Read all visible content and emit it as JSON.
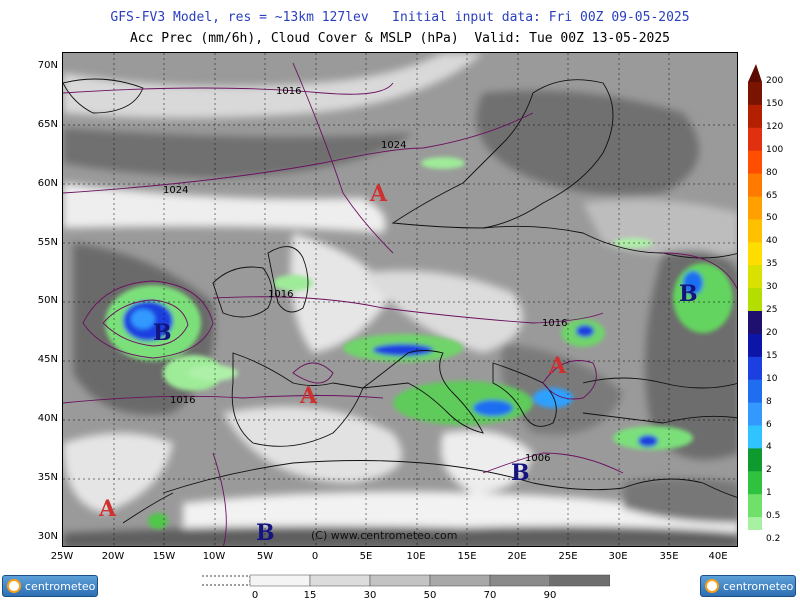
{
  "header": {
    "line1": "GFS-FV3 Model, res = ~13km 127lev   Initial input data: Fri 00Z 09-05-2025",
    "line2": "Acc Prec (mm/6h), Cloud Cover & MSLP (hPa)  Valid: Tue 00Z 13-05-2025"
  },
  "lat_labels": [
    "70N",
    "65N",
    "60N",
    "55N",
    "50N",
    "45N",
    "40N",
    "35N",
    "30N"
  ],
  "lon_labels": [
    "25W",
    "20W",
    "15W",
    "10W",
    "5W",
    "0",
    "5E",
    "10E",
    "15E",
    "20E",
    "25E",
    "30E",
    "35E",
    "40E"
  ],
  "isobar_labels": [
    "1016",
    "1024",
    "1024",
    "1016",
    "1016",
    "1016",
    "1006"
  ],
  "pressure_centers": [
    {
      "letter": "A",
      "type": "high"
    },
    {
      "letter": "B",
      "type": "low"
    },
    {
      "letter": "A",
      "type": "high"
    },
    {
      "letter": "A",
      "type": "high"
    },
    {
      "letter": "B",
      "type": "low"
    },
    {
      "letter": "B",
      "type": "low"
    },
    {
      "letter": "A",
      "type": "high"
    },
    {
      "letter": "B",
      "type": "low"
    }
  ],
  "watermark": "(C) www.centrometeo.com",
  "precip_legend": {
    "labels": [
      "200",
      "150",
      "120",
      "100",
      "80",
      "65",
      "50",
      "40",
      "35",
      "30",
      "25",
      "20",
      "15",
      "10",
      "8",
      "6",
      "4",
      "2",
      "1",
      "0.5",
      "0.2"
    ],
    "colors": [
      "#7a1400",
      "#b32000",
      "#e03010",
      "#ff4e00",
      "#ff7a00",
      "#ff9f00",
      "#ffc000",
      "#ffdd00",
      "#d8e100",
      "#b4dd00",
      "#1f0f6f",
      "#0d14a8",
      "#1b3fe0",
      "#1f6ef0",
      "#3399ff",
      "#2fc4ff",
      "#0f9a2f",
      "#2fc23f",
      "#6fe06a",
      "#a8f0a2",
      "#d8fad4"
    ]
  },
  "cloud_legend": {
    "labels": [
      "0",
      "15",
      "30",
      "50",
      "70",
      "90"
    ],
    "colors": [
      "#f4f4f4",
      "#dcdcdc",
      "#c3c3c3",
      "#a8a8a8",
      "#8a8a8a",
      "#6e6e6e"
    ]
  },
  "logo_text": "centrometeo"
}
